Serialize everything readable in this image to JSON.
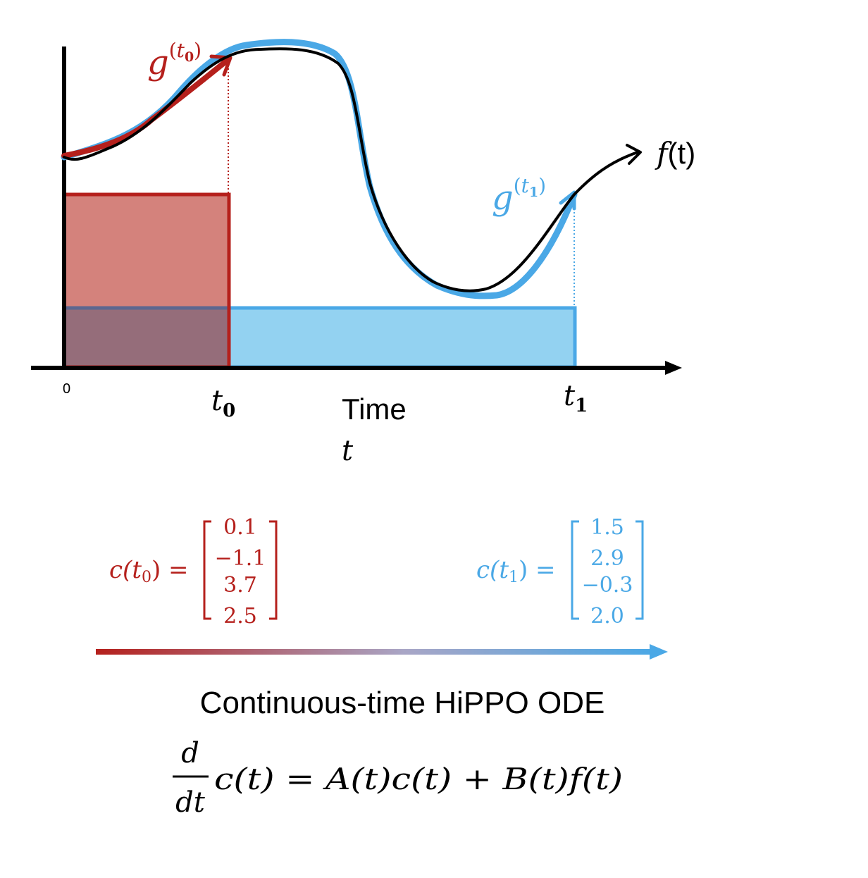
{
  "diagram": {
    "origin_label": "0",
    "t0_label": {
      "base": "t",
      "sub": "0"
    },
    "t1_label": {
      "base": "t",
      "sub": "1"
    },
    "time_label": "Time",
    "time_var": "t",
    "f_label": {
      "fn": "f",
      "arg": "(t)"
    },
    "g_t0_label": {
      "base": "g",
      "open": "(",
      "var": "t",
      "sub": "0",
      "close": ")"
    },
    "g_t1_label": {
      "base": "g",
      "open": "(",
      "var": "t",
      "sub": "1",
      "close": ")"
    },
    "c_t0": {
      "lhs_prefix": "c(",
      "lhs_var": "t",
      "lhs_sub": "0",
      "lhs_suffix": ") =",
      "values": [
        "0.1",
        "−1.1",
        "3.7",
        "2.5"
      ]
    },
    "c_t1": {
      "lhs_prefix": "c(",
      "lhs_var": "t",
      "lhs_sub": "1",
      "lhs_suffix": ") =",
      "values": [
        "1.5",
        "2.9",
        "−0.3",
        "2.0"
      ]
    },
    "ode_title": "Continuous-time HiPPO ODE",
    "ode_equation": {
      "frac_num": "d",
      "frac_den": "dt",
      "rhs": "c(t) = A(t)c(t) + B(t)f(t)"
    },
    "colors": {
      "red": "#b5201c",
      "red_fill": "#d4827c",
      "blue": "#4aa8e6",
      "blue_fill": "#93d2f1",
      "overlap_fill": "#956d7a",
      "black": "#000000"
    }
  }
}
